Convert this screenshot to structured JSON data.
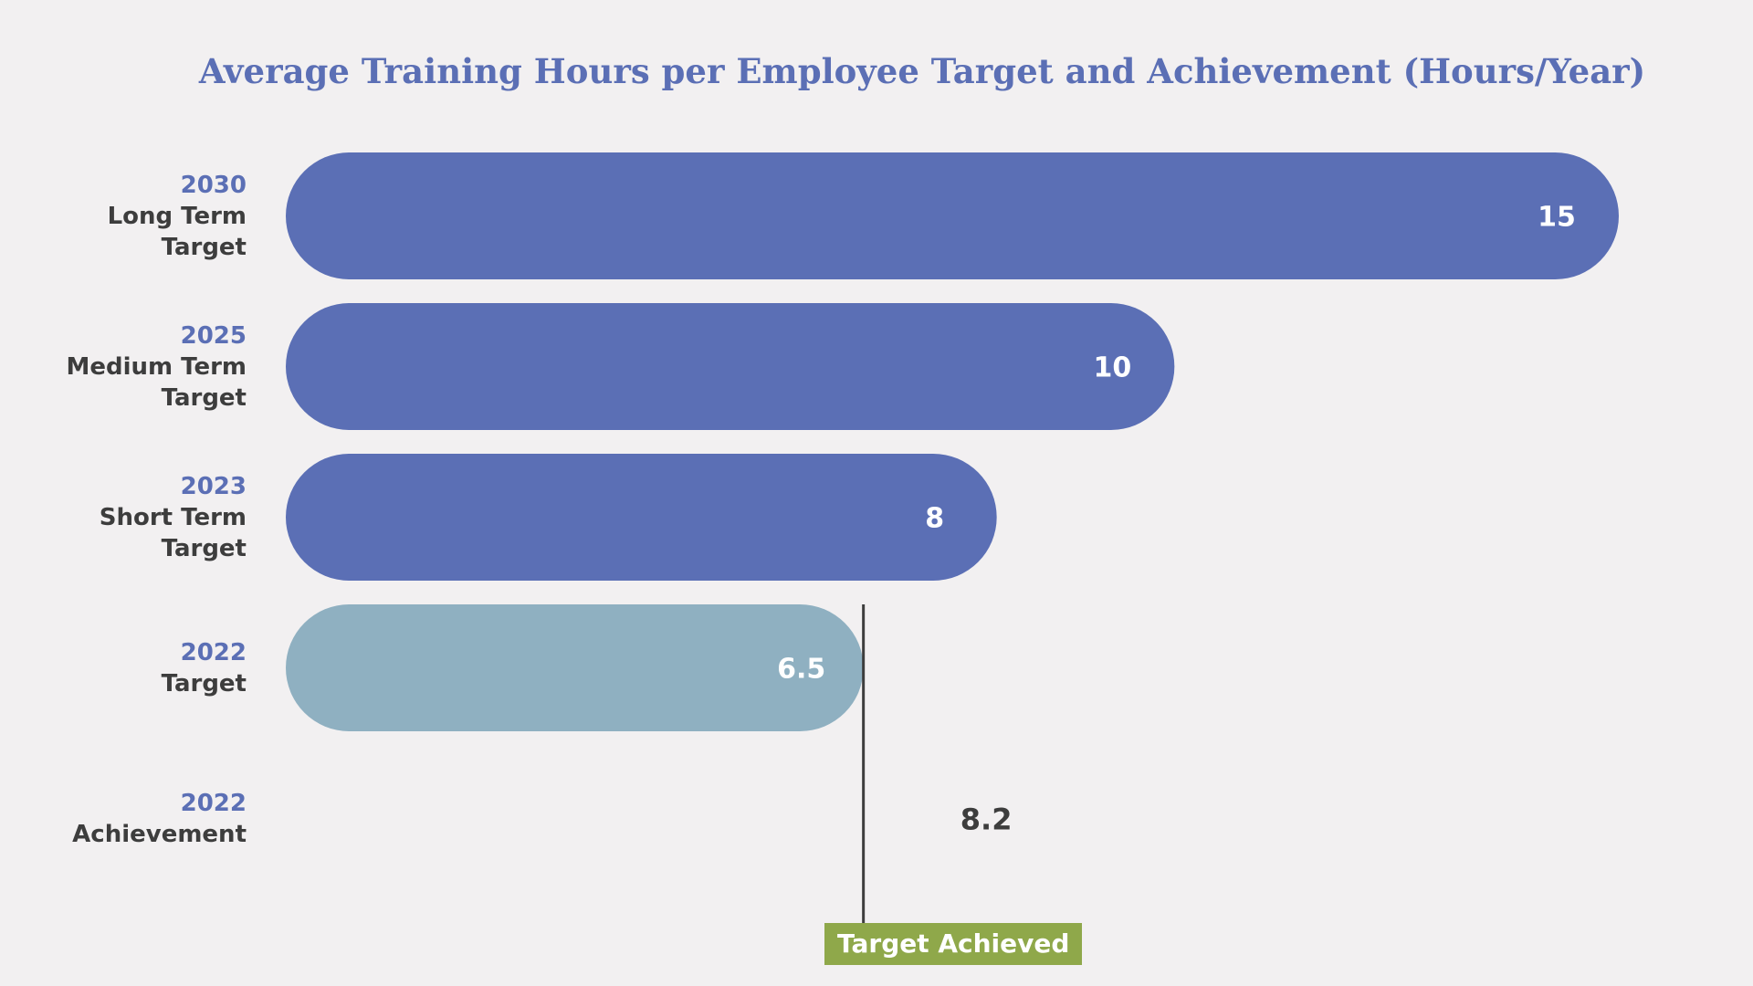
{
  "chart_data": {
    "type": "bar",
    "orientation": "horizontal",
    "title": "Average Training Hours per Employee Target and Achievement (Hours/Year)",
    "xlabel": "",
    "ylabel": "",
    "xlim": [
      0,
      15
    ],
    "grid": false,
    "categories": [
      {
        "year": "2030",
        "name": "Long Term\nTarget"
      },
      {
        "year": "2025",
        "name": "Medium Term\nTarget"
      },
      {
        "year": "2023",
        "name": "Short Term\nTarget"
      },
      {
        "year": "2022",
        "name": "Target"
      },
      {
        "year": "2022",
        "name": "Achievement"
      }
    ],
    "values": [
      15,
      10,
      8,
      6.5,
      8.2
    ],
    "value_labels": [
      "15",
      "10",
      "8",
      "6.5",
      "8.2"
    ],
    "bar_colors": [
      "#5b6fb5",
      "#5b6fb5",
      "#5b6fb5",
      "#8fb0c1",
      null
    ],
    "achievement_marker": {
      "category_index": 4,
      "reference_value": 6.5,
      "annotation": "Target Achieved",
      "annotation_color": "#8fa84a"
    }
  }
}
